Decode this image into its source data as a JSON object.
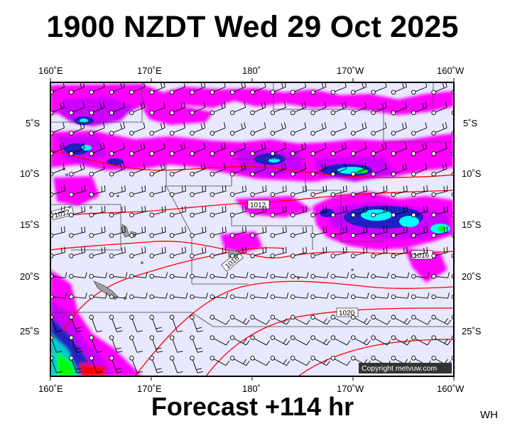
{
  "title": "1900 NZDT Wed 29 Oct 2025",
  "footer": "Forecast +114 hr",
  "initials": "WH",
  "copyright": "Copyright metvuw.com",
  "axes": {
    "lon_labels": [
      "160˚E",
      "170˚E",
      "180˚",
      "170˚W",
      "160˚W"
    ],
    "lat_labels": [
      "5˚S",
      "10˚S",
      "15˚S",
      "20˚S",
      "25˚S"
    ]
  },
  "map": {
    "lon_range": [
      "160˚E",
      "160˚W"
    ],
    "lat_range": [
      "2˚S",
      "29˚S"
    ],
    "background_color": "#e8e8ff",
    "isobar_color": "#ff0000",
    "rain_colors": [
      "#ff00ff",
      "#cc00ff",
      "#2020c0",
      "#00ffff",
      "#00ff00",
      "#ffff00",
      "#ff0000"
    ],
    "isobar_labels": [
      "1012",
      "1012",
      "1016",
      "1016",
      "1020"
    ]
  }
}
